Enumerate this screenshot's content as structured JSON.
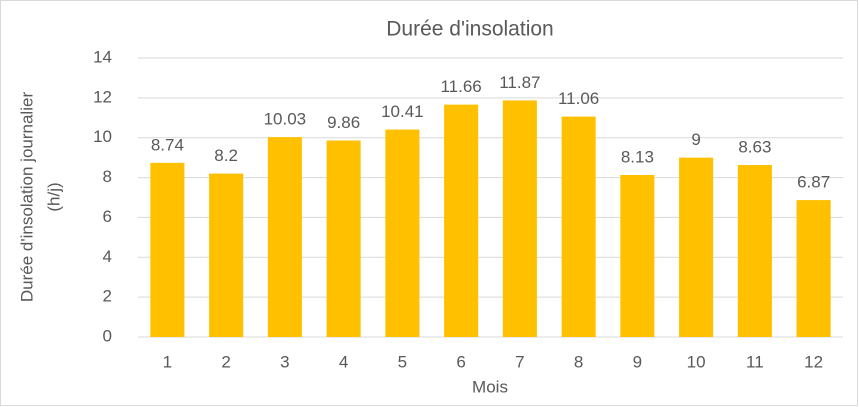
{
  "chart_data": {
    "type": "bar",
    "title": "Durée d'insolation",
    "ylabel": [
      "Durée d'insolation journalier",
      "(h/j)"
    ],
    "xlabel": "Mois",
    "categories": [
      "1",
      "2",
      "3",
      "4",
      "5",
      "6",
      "7",
      "8",
      "9",
      "10",
      "11",
      "12"
    ],
    "values": [
      8.74,
      8.2,
      10.03,
      9.86,
      10.41,
      11.66,
      11.87,
      11.06,
      8.13,
      9,
      8.63,
      6.87
    ],
    "color": "#ffc000",
    "ylim": [
      0,
      14
    ],
    "yticks": [
      0,
      2,
      4,
      6,
      8,
      10,
      12,
      14
    ],
    "grid": true
  }
}
